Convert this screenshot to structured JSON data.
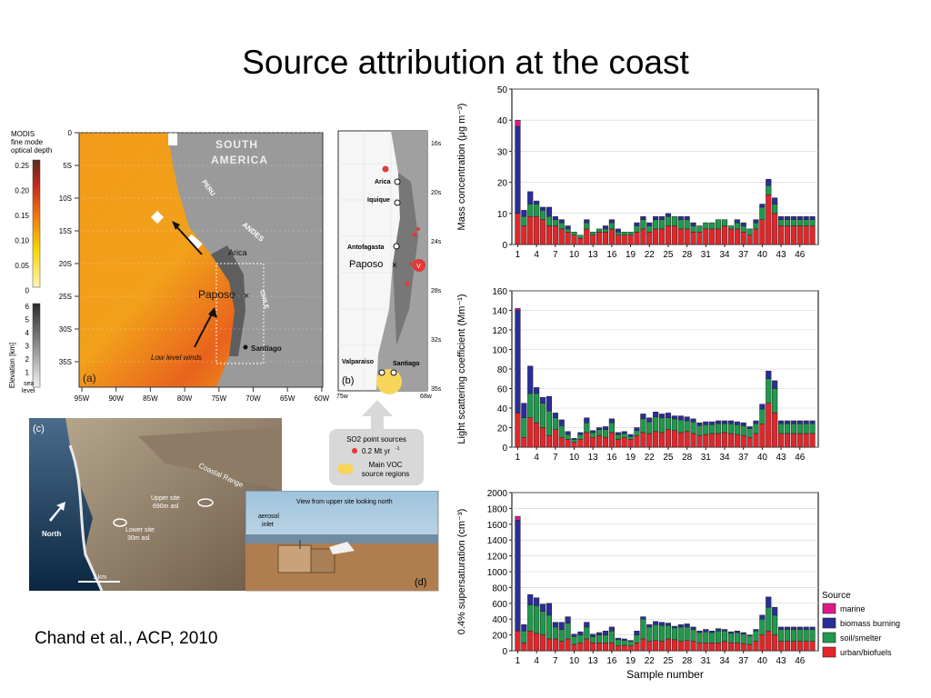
{
  "slide": {
    "title": "Source attribution at the coast",
    "citation": "Chand et al., ACP, 2010",
    "figure_c_label": "(c)"
  },
  "map_a": {
    "panel_label": "(a)",
    "region_label_1": "SOUTH",
    "region_label_2": "AMERICA",
    "peru": "PERU",
    "andes": "ANDES",
    "chile": "CHILE",
    "arica": "Arica",
    "paposo": "Paposo",
    "santiago": "Santiago",
    "winds": "Low level winds",
    "colorbar_title_1": "MODIS",
    "colorbar_title_2": "fine mode",
    "colorbar_title_3": "optical depth",
    "colorbar_ticks": [
      "0.25",
      "0.20",
      "0.15",
      "0.10",
      "0.05",
      "0"
    ],
    "elev_label": "Elevation [km]",
    "elev_ticks": [
      "6",
      "5",
      "4",
      "3",
      "2",
      "1"
    ],
    "elev_bottom": "sea",
    "elev_bottom_2": "level",
    "lat_ticks": [
      "0",
      "5S",
      "10S",
      "15S",
      "20S",
      "25S",
      "30S",
      "35S"
    ],
    "lon_ticks": [
      "95W",
      "90W",
      "85W",
      "80W",
      "75W",
      "70W",
      "65W",
      "60W"
    ]
  },
  "map_b": {
    "panel_label": "(b)",
    "arica": "Arica",
    "iquique": "Iquique",
    "antofagasta": "Antofagasta",
    "paposo": "Paposo",
    "valparaiso": "Valparaiso",
    "santiago": "Santiago",
    "lat_ticks": [
      "16s",
      "20s",
      "24s",
      "28s",
      "32s",
      "35s"
    ],
    "lon_ticks": [
      "75w",
      "68w"
    ],
    "v_marker": "V"
  },
  "legend_b": {
    "line1": "SO2 point sources",
    "line2": "0.2 Mt yr",
    "sup": "-1",
    "line3": "Main VOC",
    "line4": "source regions"
  },
  "photo_c": {
    "panel_label": "(c)",
    "coastal_range": "Coastal Range",
    "upper_site_1": "Upper site",
    "upper_site_2": "690m asl",
    "lower_site_1": "Lower site",
    "lower_site_2": "30m asl",
    "north": "North",
    "scale": "1 km"
  },
  "photo_d": {
    "panel_label": "(d)",
    "caption": "View from upper site looking north",
    "aerosol_1": "aerosol",
    "aerosol_2": "inlet"
  },
  "legend": {
    "title": "Source",
    "items": [
      {
        "label": "marine",
        "color": "#e0198a"
      },
      {
        "label": "biomass burning",
        "color": "#2b2d9b"
      },
      {
        "label": "soil/smelter",
        "color": "#1f9a4c"
      },
      {
        "label": "urban/biofuels",
        "color": "#e3262a"
      }
    ]
  },
  "chart_data": [
    {
      "type": "bar",
      "stacked": true,
      "ylabel": "Mass concentration (μg m⁻³)",
      "ylim": [
        0,
        50
      ],
      "yticks": [
        0,
        10,
        20,
        30,
        40,
        50
      ],
      "xticks": [
        "1",
        "4",
        "7",
        "10",
        "13",
        "16",
        "19",
        "22",
        "25",
        "28",
        "31",
        "34",
        "37",
        "40",
        "43",
        "46"
      ],
      "x": [
        1,
        2,
        3,
        4,
        5,
        6,
        7,
        8,
        9,
        10,
        11,
        12,
        13,
        14,
        15,
        16,
        17,
        18,
        19,
        20,
        21,
        22,
        23,
        24,
        25,
        26,
        27,
        28,
        29,
        30,
        31,
        32,
        33,
        34,
        35,
        36,
        37,
        38,
        39,
        40,
        41,
        42,
        43,
        44,
        45,
        46,
        47,
        48
      ],
      "series": [
        {
          "name": "urban/biofuels",
          "values": [
            10,
            6,
            9,
            9,
            8,
            6,
            6,
            5,
            4,
            3,
            2,
            5,
            3,
            4,
            4,
            5,
            3,
            3,
            3,
            4,
            5,
            4,
            5,
            5,
            6,
            6,
            5,
            5,
            4,
            4,
            5,
            5,
            5,
            6,
            5,
            5,
            4,
            3,
            5,
            8,
            16,
            10,
            6,
            6,
            6,
            6,
            6,
            6
          ]
        },
        {
          "name": "soil/smelter",
          "values": [
            0,
            3,
            4,
            4,
            3,
            3,
            2,
            2,
            1,
            1,
            1,
            2,
            1,
            1,
            1,
            2,
            1,
            1,
            1,
            2,
            3,
            2,
            3,
            3,
            3,
            3,
            3,
            3,
            2,
            2,
            2,
            2,
            3,
            2,
            1,
            2,
            2,
            2,
            2,
            4,
            3,
            3,
            2,
            2,
            2,
            2,
            2,
            2
          ]
        },
        {
          "name": "biomass burning",
          "values": [
            28,
            2,
            4,
            1,
            1,
            3,
            1,
            1,
            1,
            0,
            0,
            1,
            0,
            0,
            1,
            1,
            1,
            0,
            0,
            1,
            1,
            1,
            1,
            1,
            1,
            0,
            1,
            1,
            1,
            0,
            0,
            0,
            0,
            0,
            0,
            1,
            1,
            0,
            1,
            1,
            2,
            2,
            1,
            1,
            1,
            1,
            1,
            1
          ]
        },
        {
          "name": "marine",
          "values": [
            2,
            0,
            0,
            0,
            0,
            0,
            0,
            0,
            0,
            0,
            0,
            0,
            0,
            0,
            0,
            0,
            0,
            0,
            0,
            0,
            0,
            0,
            0,
            0,
            0,
            0,
            0,
            0,
            0,
            0,
            0,
            0,
            0,
            0,
            0,
            0,
            0,
            0,
            0,
            0,
            0,
            0,
            0,
            0,
            0,
            0,
            0,
            0
          ]
        }
      ]
    },
    {
      "type": "bar",
      "stacked": true,
      "ylabel": "Light scattering coefficient (Mm⁻¹)",
      "ylim": [
        0,
        160
      ],
      "yticks": [
        0,
        20,
        40,
        60,
        80,
        100,
        120,
        140,
        160
      ],
      "xticks": [
        "1",
        "4",
        "7",
        "10",
        "13",
        "16",
        "19",
        "22",
        "25",
        "28",
        "31",
        "34",
        "37",
        "40",
        "43",
        "46"
      ],
      "x": [
        1,
        2,
        3,
        4,
        5,
        6,
        7,
        8,
        9,
        10,
        11,
        12,
        13,
        14,
        15,
        16,
        17,
        18,
        19,
        20,
        21,
        22,
        23,
        24,
        25,
        26,
        27,
        28,
        29,
        30,
        31,
        32,
        33,
        34,
        35,
        36,
        37,
        38,
        39,
        40,
        41,
        42,
        43,
        44,
        45,
        46,
        47,
        48
      ],
      "series": [
        {
          "name": "urban/biofuels",
          "values": [
            35,
            10,
            30,
            25,
            20,
            12,
            18,
            10,
            8,
            5,
            8,
            15,
            10,
            12,
            10,
            15,
            8,
            10,
            8,
            12,
            15,
            14,
            16,
            15,
            18,
            17,
            15,
            16,
            14,
            12,
            13,
            14,
            14,
            15,
            14,
            13,
            12,
            10,
            14,
            24,
            45,
            35,
            14,
            14,
            14,
            14,
            14,
            14
          ]
        },
        {
          "name": "soil/smelter",
          "values": [
            0,
            20,
            25,
            30,
            25,
            25,
            12,
            12,
            5,
            3,
            5,
            10,
            5,
            6,
            8,
            10,
            5,
            4,
            3,
            5,
            14,
            12,
            15,
            15,
            12,
            12,
            13,
            11,
            12,
            10,
            10,
            9,
            10,
            9,
            10,
            10,
            10,
            9,
            10,
            15,
            25,
            25,
            10,
            10,
            10,
            10,
            10,
            10
          ]
        },
        {
          "name": "biomass burning",
          "values": [
            105,
            15,
            28,
            6,
            6,
            15,
            5,
            6,
            3,
            1,
            2,
            5,
            2,
            2,
            3,
            4,
            2,
            2,
            2,
            3,
            5,
            4,
            5,
            4,
            5,
            3,
            4,
            4,
            3,
            3,
            3,
            3,
            3,
            3,
            3,
            3,
            3,
            2,
            3,
            5,
            8,
            8,
            3,
            3,
            3,
            3,
            3,
            3
          ]
        },
        {
          "name": "marine",
          "values": [
            2,
            0,
            0,
            0,
            0,
            0,
            0,
            0,
            0,
            0,
            0,
            0,
            0,
            0,
            0,
            0,
            0,
            0,
            0,
            0,
            0,
            0,
            0,
            0,
            0,
            0,
            0,
            0,
            0,
            0,
            0,
            0,
            0,
            0,
            0,
            0,
            0,
            0,
            0,
            0,
            0,
            0,
            0,
            0,
            0,
            0,
            0,
            0
          ]
        }
      ]
    },
    {
      "type": "bar",
      "stacked": true,
      "ylabel": "0.4% supersaturation (cm⁻³)",
      "ylim": [
        0,
        2000
      ],
      "yticks": [
        0,
        200,
        400,
        600,
        800,
        1000,
        1200,
        1400,
        1600,
        1800,
        2000
      ],
      "xticks": [
        "1",
        "4",
        "7",
        "10",
        "13",
        "16",
        "19",
        "22",
        "25",
        "28",
        "31",
        "34",
        "37",
        "40",
        "43",
        "46"
      ],
      "xlabel": "Sample number",
      "x": [
        1,
        2,
        3,
        4,
        5,
        6,
        7,
        8,
        9,
        10,
        11,
        12,
        13,
        14,
        15,
        16,
        17,
        18,
        19,
        20,
        21,
        22,
        23,
        24,
        25,
        26,
        27,
        28,
        29,
        30,
        31,
        32,
        33,
        34,
        35,
        36,
        37,
        38,
        39,
        40,
        41,
        42,
        43,
        44,
        45,
        46,
        47,
        48
      ],
      "series": [
        {
          "name": "urban/biofuels",
          "values": [
            250,
            100,
            250,
            220,
            200,
            150,
            150,
            120,
            150,
            80,
            100,
            150,
            100,
            100,
            100,
            100,
            60,
            70,
            60,
            100,
            150,
            120,
            130,
            120,
            150,
            140,
            120,
            130,
            120,
            100,
            100,
            100,
            100,
            120,
            100,
            100,
            90,
            80,
            120,
            200,
            250,
            200,
            120,
            120,
            120,
            120,
            120,
            120
          ]
        },
        {
          "name": "soil/smelter",
          "values": [
            0,
            150,
            330,
            350,
            300,
            300,
            150,
            150,
            200,
            100,
            100,
            150,
            80,
            100,
            100,
            150,
            80,
            60,
            60,
            100,
            250,
            180,
            200,
            200,
            170,
            150,
            180,
            170,
            150,
            130,
            140,
            130,
            150,
            130,
            120,
            130,
            120,
            110,
            130,
            200,
            300,
            250,
            150,
            150,
            150,
            150,
            150,
            150
          ]
        },
        {
          "name": "biomass burning",
          "values": [
            1400,
            80,
            130,
            100,
            90,
            150,
            60,
            90,
            80,
            30,
            40,
            60,
            30,
            30,
            50,
            50,
            20,
            20,
            10,
            50,
            30,
            30,
            40,
            40,
            30,
            20,
            30,
            40,
            30,
            20,
            30,
            20,
            30,
            20,
            20,
            20,
            20,
            10,
            20,
            50,
            130,
            100,
            30,
            30,
            30,
            30,
            30,
            30
          ]
        },
        {
          "name": "marine",
          "values": [
            50,
            0,
            0,
            0,
            0,
            0,
            0,
            0,
            0,
            0,
            0,
            0,
            0,
            0,
            0,
            0,
            0,
            0,
            0,
            0,
            0,
            0,
            0,
            0,
            0,
            0,
            0,
            0,
            0,
            0,
            0,
            0,
            0,
            0,
            0,
            0,
            0,
            0,
            0,
            0,
            0,
            0,
            0,
            0,
            0,
            0,
            0,
            0
          ]
        }
      ]
    }
  ]
}
